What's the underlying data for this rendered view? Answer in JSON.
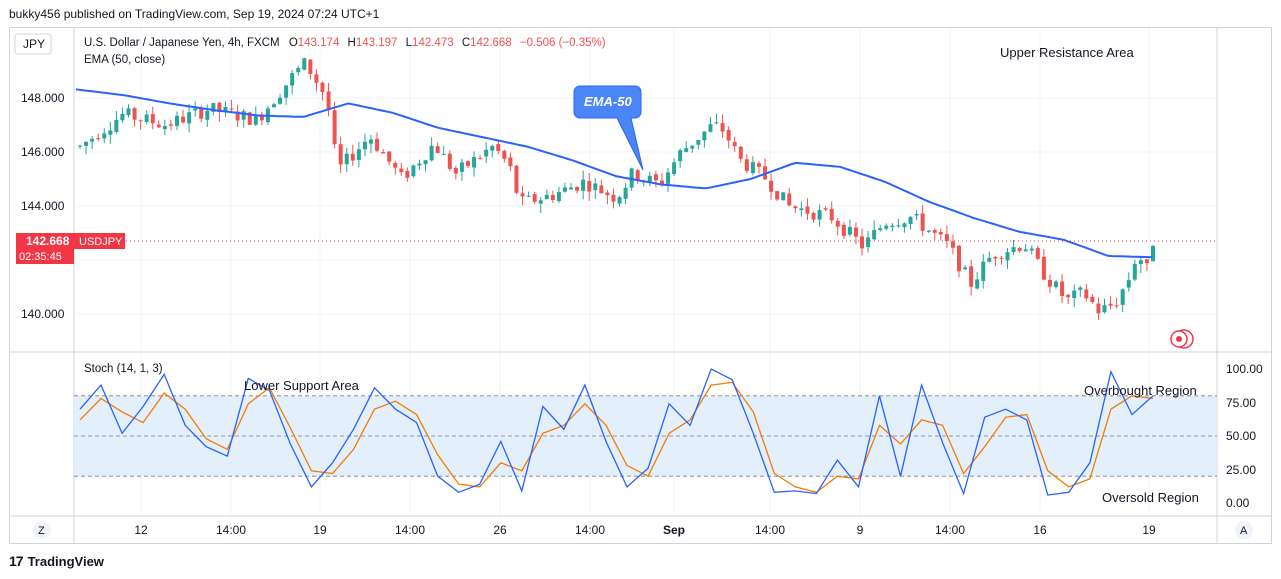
{
  "header": {
    "published": "bukky456 published on TradingView.com, Sep 19, 2024 07:24 UTC+1"
  },
  "symbol": {
    "currency_badge": "JPY",
    "description": "U.S. Dollar / Japanese Yen, 4h, FXCM",
    "o_label": "O",
    "o": "143.174",
    "h_label": "H",
    "h": "143.197",
    "l_label": "L",
    "l": "142.473",
    "c_label": "C",
    "c": "142.668",
    "change": "−0.506 (−0.35%)",
    "ema_label": "EMA (50, close)"
  },
  "price_tag": {
    "price": "142.668",
    "ticker": "USDJPY",
    "countdown": "02:35:45"
  },
  "annotations": {
    "ema": "EMA-50",
    "upper": "Upper Resistance Area",
    "lower": "Lower Support Area",
    "overbought": "Overbought Region",
    "oversold": "Oversold Region"
  },
  "stoch": {
    "label": "Stoch (14, 1, 3)"
  },
  "buttons": {
    "z": "Z",
    "a": "A"
  },
  "footer": {
    "brand": "TradingView"
  },
  "colors": {
    "up": "#26a69a",
    "down": "#ef5350",
    "ema": "#2962ff",
    "k": "#2962ff",
    "d": "#f57c00",
    "band": "#e3effb",
    "tag": "#f23645"
  },
  "chart_data": [
    {
      "type": "candlestick",
      "yticks": [
        "148.000",
        "146.000",
        "144.000",
        "140.000"
      ],
      "ylim": [
        139.0,
        150.3
      ],
      "xticks": [
        "12",
        "14:00",
        "19",
        "14:00",
        "26",
        "14:00",
        "Sep",
        "14:00",
        "9",
        "14:00",
        "16",
        "19"
      ],
      "last_price": 142.668,
      "ema50_approx": [
        148.3,
        148.1,
        147.8,
        147.55,
        147.35,
        147.3,
        147.8,
        147.45,
        146.9,
        146.55,
        146.2,
        145.7,
        145.1,
        144.8,
        144.65,
        145.0,
        145.6,
        145.45,
        144.9,
        144.15,
        143.55,
        143.05,
        142.75,
        142.15,
        142.1
      ]
    },
    {
      "type": "line",
      "title": "Stoch (14, 1, 3)",
      "yticks": [
        "100.00",
        "75.00",
        "50.00",
        "25.00",
        "0.00"
      ],
      "ylim": [
        0,
        100
      ],
      "band": [
        20,
        80
      ],
      "series": [
        {
          "name": "%K",
          "values_approx": [
            70,
            88,
            52,
            72,
            96,
            58,
            42,
            35,
            93,
            84,
            44,
            12,
            30,
            55,
            86,
            70,
            60,
            20,
            8,
            14,
            46,
            9,
            72,
            55,
            88,
            46,
            12,
            26,
            74,
            58,
            100,
            92,
            52,
            8,
            9,
            7,
            32,
            12,
            80,
            20,
            88,
            45,
            7,
            64,
            70,
            62,
            6,
            8,
            30,
            98,
            66,
            80
          ]
        },
        {
          "name": "%D",
          "values_approx": [
            62,
            78,
            68,
            60,
            82,
            70,
            48,
            40,
            74,
            86,
            56,
            24,
            22,
            40,
            70,
            76,
            66,
            36,
            14,
            12,
            30,
            24,
            52,
            58,
            74,
            58,
            28,
            20,
            52,
            62,
            88,
            90,
            68,
            22,
            12,
            8,
            20,
            18,
            58,
            44,
            62,
            58,
            22,
            42,
            64,
            66,
            24,
            12,
            18,
            70,
            80,
            78
          ]
        }
      ]
    }
  ]
}
